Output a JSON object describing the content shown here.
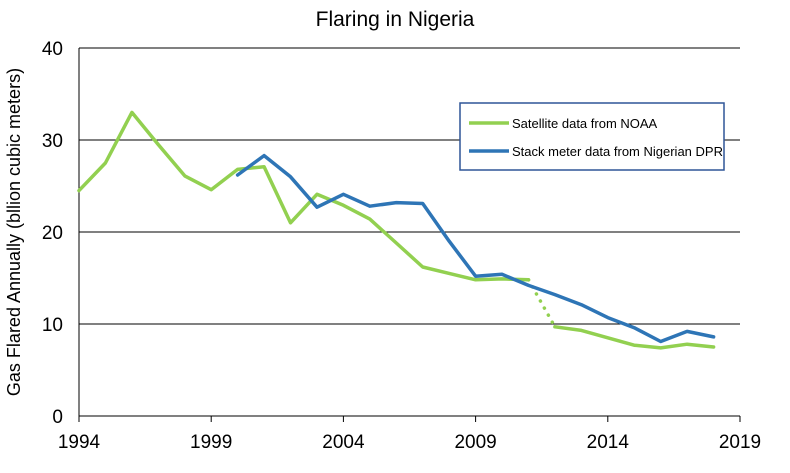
{
  "chart_data": {
    "type": "line",
    "title": "Flaring in Nigeria",
    "xlabel": "",
    "ylabel": "Gas Flared Annually (bllion cubic meters)",
    "xlim": [
      1994,
      2019
    ],
    "ylim": [
      0,
      40
    ],
    "x_ticks": [
      1994,
      1999,
      2004,
      2009,
      2014,
      2019
    ],
    "y_ticks": [
      0,
      10,
      20,
      30,
      40
    ],
    "grid": "horizontal",
    "legend_position": "top-right",
    "series": [
      {
        "name": "Satellite data from NOAA",
        "color": "#92d050",
        "points": [
          [
            1994,
            24.5
          ],
          [
            1995,
            27.5
          ],
          [
            1996,
            33.0
          ],
          [
            1997,
            29.5
          ],
          [
            1998,
            26.1
          ],
          [
            1999,
            24.6
          ],
          [
            2000,
            26.8
          ],
          [
            2001,
            27.1
          ],
          [
            2002,
            21.0
          ],
          [
            2003,
            24.1
          ],
          [
            2004,
            22.9
          ],
          [
            2005,
            21.4
          ],
          [
            2006,
            18.8
          ],
          [
            2007,
            16.2
          ],
          [
            2008,
            15.5
          ],
          [
            2009,
            14.8
          ],
          [
            2010,
            14.9
          ],
          [
            2011,
            14.8
          ]
        ],
        "dotted_points": [
          [
            2011,
            14.8
          ],
          [
            2012,
            9.7
          ]
        ],
        "points_after_gap": [
          [
            2012,
            9.7
          ],
          [
            2013,
            9.3
          ],
          [
            2014,
            8.5
          ],
          [
            2015,
            7.7
          ],
          [
            2016,
            7.4
          ],
          [
            2017,
            7.8
          ],
          [
            2018,
            7.5
          ]
        ]
      },
      {
        "name": "Stack meter data from Nigerian DPR",
        "color": "#2e75b6",
        "points": [
          [
            2000,
            26.2
          ],
          [
            2001,
            28.3
          ],
          [
            2002,
            26.0
          ],
          [
            2003,
            22.7
          ],
          [
            2004,
            24.1
          ],
          [
            2005,
            22.8
          ],
          [
            2006,
            23.2
          ],
          [
            2007,
            23.1
          ],
          [
            2008,
            19.0
          ],
          [
            2009,
            15.2
          ],
          [
            2010,
            15.4
          ],
          [
            2011,
            14.2
          ],
          [
            2012,
            13.2
          ],
          [
            2013,
            12.1
          ],
          [
            2014,
            10.7
          ],
          [
            2015,
            9.6
          ],
          [
            2016,
            8.1
          ],
          [
            2017,
            9.2
          ],
          [
            2018,
            8.6
          ]
        ]
      }
    ]
  }
}
